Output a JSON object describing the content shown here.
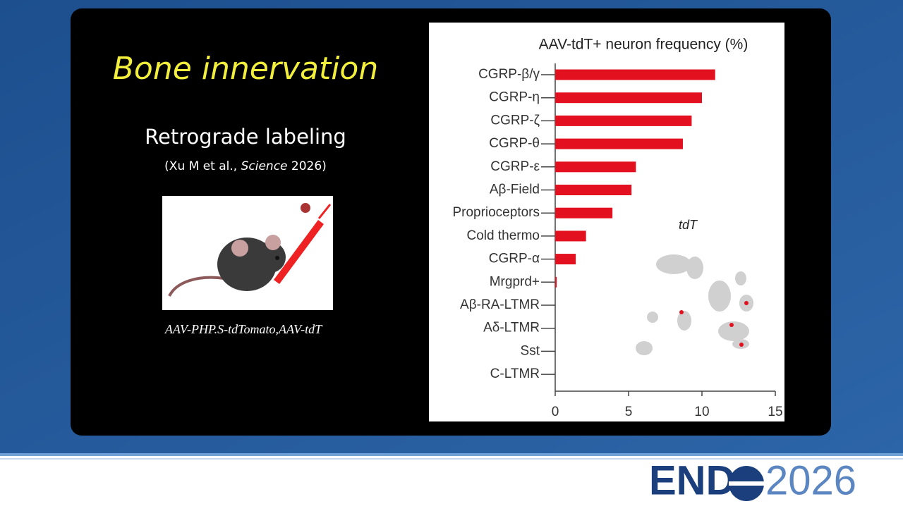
{
  "slide": {
    "title": "Bone innervation",
    "subtitle": "Retrograde labeling",
    "citation": {
      "before": "(Xu M et al., ",
      "journal": "Science",
      "after": " 2026)"
    },
    "caption": "AAV-PHP.S-tdTomato,AAV-tdT",
    "logo": {
      "left": "END",
      "right": "2026"
    }
  },
  "chart_data": {
    "type": "barh",
    "title": "AAV-tdT+ neuron frequency (%)",
    "annotation": "tdT",
    "categories": [
      "CGRP-β/γ",
      "CGRP-η",
      "CGRP-ζ",
      "CGRP-θ",
      "CGRP-ε",
      "Aβ-Field",
      "Proprioceptors",
      "Cold thermo",
      "CGRP-α",
      "Mrgprd+",
      "Aβ-RA-LTMR",
      "Aδ-LTMR",
      "Sst",
      "C-LTMR"
    ],
    "values": [
      10.9,
      10.0,
      9.3,
      8.7,
      5.5,
      5.2,
      3.9,
      2.1,
      1.4,
      0.1,
      0,
      0,
      0,
      0
    ],
    "color": "#e3101f",
    "xlim": [
      0,
      15
    ],
    "xticks": [
      0,
      5,
      10,
      15
    ]
  }
}
